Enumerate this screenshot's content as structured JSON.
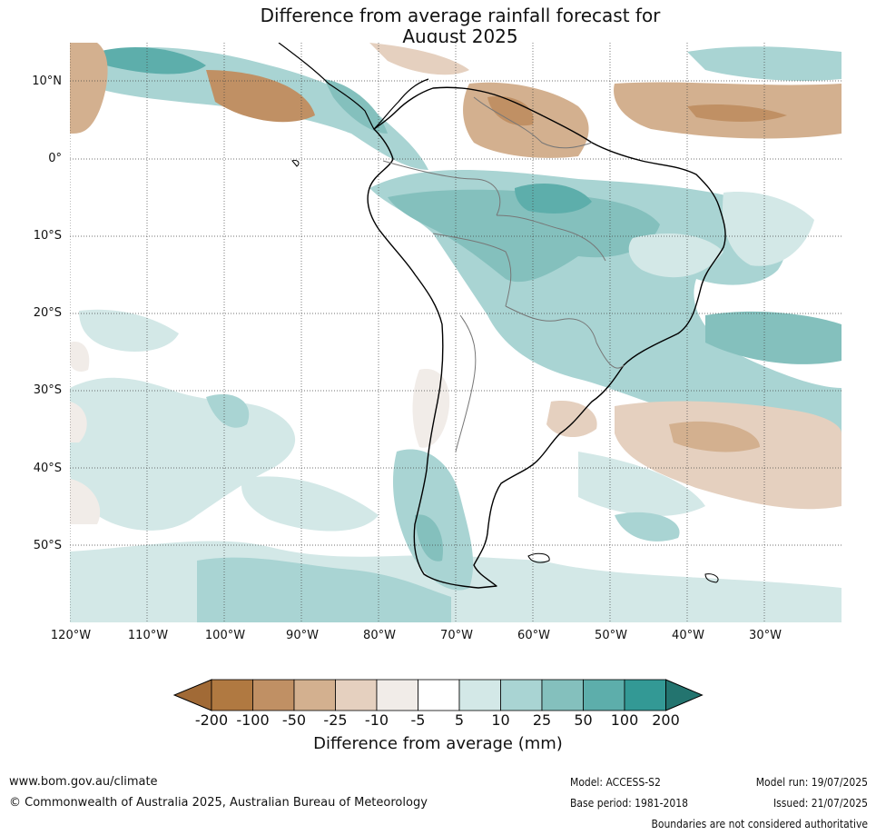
{
  "title": {
    "line1": "Difference from average rainfall forecast for",
    "line2": "August 2025"
  },
  "axes": {
    "lat_labels": [
      "10°N",
      "0°",
      "10°S",
      "20°S",
      "30°S",
      "40°S",
      "50°S"
    ],
    "lon_labels": [
      "120°W",
      "110°W",
      "100°W",
      "90°W",
      "80°W",
      "70°W",
      "60°W",
      "50°W",
      "40°W",
      "30°W"
    ]
  },
  "legend": {
    "title": "Difference from average (mm)",
    "ticks": [
      "-200",
      "-100",
      "-50",
      "-25",
      "-10",
      "-5",
      "5",
      "10",
      "25",
      "50",
      "100",
      "200"
    ],
    "colors": [
      "#a16a36",
      "#b07941",
      "#c09064",
      "#d3b08f",
      "#e5d0bf",
      "#f1ece8",
      "#ffffff",
      "#d3e8e7",
      "#a9d4d3",
      "#84c0bd",
      "#5daeab",
      "#339995",
      "#23746f"
    ]
  },
  "map_data": {
    "region": "South America",
    "extent": {
      "lon": [
        -120,
        -20
      ],
      "lat": [
        -60,
        15
      ]
    },
    "gridlines": "dotted every 10°",
    "wetter_areas": [
      "Amazon basin",
      "northeast Brazil coast",
      "southeast Brazil",
      "southern Chile",
      "Southern Ocean south of 50°S"
    ],
    "drier_areas": [
      "Venezuela and the Guianas",
      "Caribbean",
      "South Atlantic near 35°S-45°S",
      "Uruguay"
    ]
  },
  "footer": {
    "url": "www.bom.gov.au/climate",
    "copyright": "© Commonwealth of Australia 2025, Australian Bureau of Meteorology",
    "model": "Model: ACCESS-S2",
    "base_period": "Base period: 1981-2018",
    "model_run": "Model run: 19/07/2025",
    "issued": "Issued: 21/07/2025",
    "disclaimer": "Boundaries are not considered authoritative"
  }
}
